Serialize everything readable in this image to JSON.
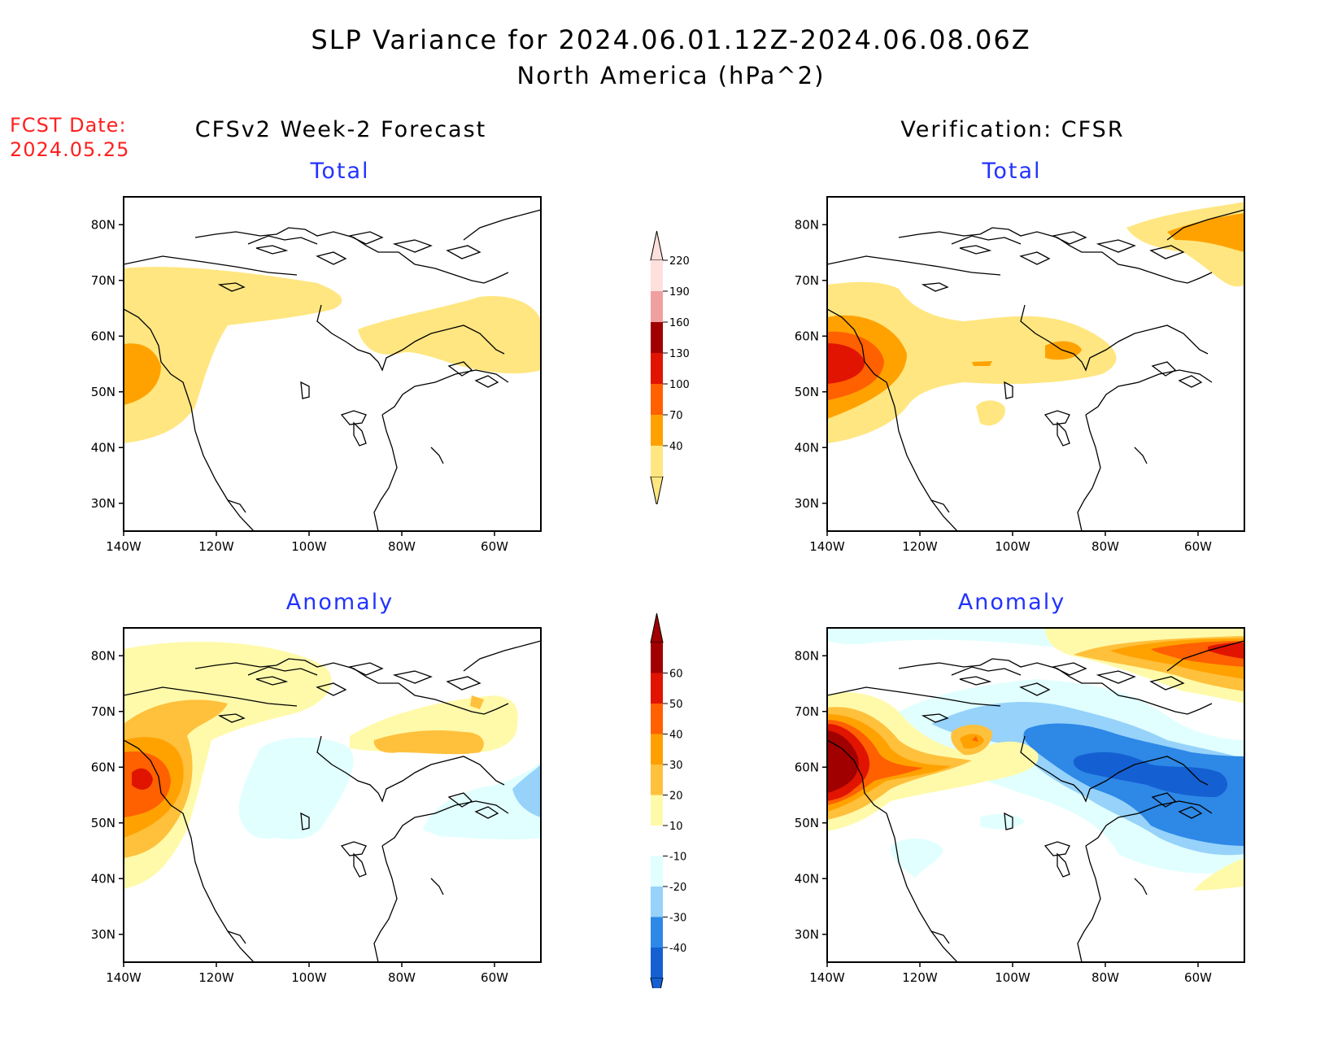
{
  "title": {
    "line1": "SLP Variance for 2024.06.01.12Z-2024.06.08.06Z",
    "line2": "North America (hPa^2)"
  },
  "fcst": {
    "label": "FCST Date:",
    "date": "2024.05.25"
  },
  "columns": {
    "left": "CFSv2 Week-2 Forecast",
    "right": "Verification: CFSR"
  },
  "panels": {
    "fcst_total": "Total",
    "verif_total": "Total",
    "fcst_anom": "Anomaly",
    "verif_anom": "Anomaly"
  },
  "axes": {
    "lat_labels": [
      "80N",
      "70N",
      "60N",
      "50N",
      "40N",
      "30N"
    ],
    "lat_values": [
      80,
      70,
      60,
      50,
      40,
      30
    ],
    "lon_labels": [
      "140W",
      "120W",
      "100W",
      "80W",
      "60W"
    ],
    "lon_values": [
      -140,
      -120,
      -100,
      -80,
      -60
    ],
    "lon_range": [
      -140,
      -50
    ],
    "lat_range": [
      25,
      85
    ]
  },
  "colorbars": {
    "total": {
      "labels": [
        "40",
        "70",
        "100",
        "130",
        "160",
        "190",
        "220"
      ],
      "colors": [
        "#ffe680",
        "#ffa200",
        "#ff6000",
        "#e01400",
        "#a00000",
        "#f0a0a0",
        "#fde0dc"
      ]
    },
    "anomaly": {
      "labels": [
        "-40",
        "-30",
        "-20",
        "-10",
        "10",
        "20",
        "30",
        "40",
        "50",
        "60"
      ],
      "colors": [
        "#1460d2",
        "#2d88e6",
        "#96d2fa",
        "#e1ffff",
        "#ffffff",
        "#fffaaa",
        "#ffc03c",
        "#ffa000",
        "#ff6000",
        "#e01400",
        "#a00000"
      ]
    }
  },
  "legend_colors": {
    "label_blue": "#2233ff",
    "fcst_red": "#ff2020"
  }
}
